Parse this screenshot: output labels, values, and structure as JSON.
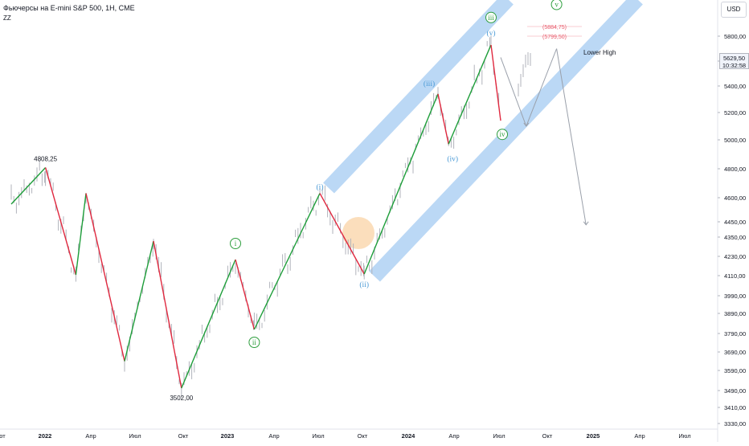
{
  "header": {
    "title": "Фьючерсы на E-mini S&P 500, 1H, CME",
    "indicator": "ZZ"
  },
  "currency_button": "USD",
  "price_tag": {
    "price": "5629,50",
    "countdown": "10:32:58"
  },
  "colors": {
    "up_leg": "#1e9e3a",
    "down_leg": "#e0283f",
    "channel": "#bbd8f5",
    "green_label": "#2e9e3e",
    "blue_label": "#4a9ad6",
    "target_red": "#e85a6a",
    "highlight": "#f7b56a",
    "candles": "#b0b3bb",
    "axis_text": "#131722"
  },
  "chart_data": {
    "type": "line",
    "title": "Фьючерсы на E-mini S&P 500, 1H, CME",
    "xlabel": "",
    "ylabel": "",
    "x_ticks": [
      "от",
      "2022",
      "Апр",
      "Июл",
      "Окт",
      "2023",
      "Апр",
      "Июл",
      "Окт",
      "2024",
      "Апр",
      "Июл",
      "Окт",
      "2025",
      "Апр",
      "Июл"
    ],
    "y_ticks": [
      "5800,00",
      "5600,00",
      "5400,00",
      "5200,00",
      "5000,00",
      "4800,00",
      "4600,00",
      "4450,00",
      "4350,00",
      "4230,00",
      "4110,00",
      "3990,00",
      "3890,00",
      "3790,00",
      "3690,00",
      "3590,00",
      "3490,00",
      "3410,00",
      "3330,00"
    ],
    "y_range": [
      3330,
      5800
    ],
    "series": [
      {
        "points": [
          {
            "x": "2021-10-25",
            "y": 4560
          },
          {
            "x": "2022-01-04",
            "y": 4808.25
          },
          {
            "x": "2022-03-08",
            "y": 4115
          },
          {
            "x": "2022-03-29",
            "y": 4630
          },
          {
            "x": "2022-06-17",
            "y": 3640
          },
          {
            "x": "2022-08-16",
            "y": 4325
          },
          {
            "x": "2022-10-13",
            "y": 3502
          },
          {
            "x": "2023-02-02",
            "y": 4210
          },
          {
            "x": "2023-03-13",
            "y": 3810
          },
          {
            "x": "2023-07-27",
            "y": 4630
          },
          {
            "x": "2023-10-27",
            "y": 4120
          },
          {
            "x": "2024-03-28",
            "y": 5340
          },
          {
            "x": "2024-04-19",
            "y": 4970
          },
          {
            "x": "2024-07-16",
            "y": 5730
          },
          {
            "x": "2024-08-05",
            "y": 5140
          }
        ]
      }
    ],
    "projection": [
      {
        "x": "2024-08-05",
        "y": 5629.5
      },
      {
        "x": "2024-09-27",
        "y": 5100
      },
      {
        "x": "2024-11-29",
        "y": 5700
      },
      {
        "x": "2025-01-29",
        "y": 4430
      }
    ],
    "labels": [
      {
        "text": "4808,25",
        "x": "2022-01-04",
        "y": 4808.25
      },
      {
        "text": "3502,00",
        "x": "2022-10-13",
        "y": 3502
      },
      {
        "text": "i",
        "x": "2023-02-02",
        "y": 4210,
        "style": "green"
      },
      {
        "text": "ii",
        "x": "2023-03-13",
        "y": 3810,
        "style": "green"
      },
      {
        "text": "iii",
        "x": "2024-07-16",
        "y": 5730,
        "style": "green"
      },
      {
        "text": "iv",
        "x": "2024-08-05",
        "y": 5140,
        "style": "green"
      },
      {
        "text": "v",
        "x": "2024-11-29",
        "y": 5700,
        "style": "green"
      },
      {
        "text": "(i)",
        "x": "2023-07-27",
        "y": 4630,
        "style": "blue"
      },
      {
        "text": "(ii)",
        "x": "2023-10-27",
        "y": 4120,
        "style": "blue"
      },
      {
        "text": "(iii)",
        "x": "2024-03-28",
        "y": 5340,
        "style": "blue"
      },
      {
        "text": "(iv)",
        "x": "2024-04-19",
        "y": 4970,
        "style": "blue"
      },
      {
        "text": "(v)",
        "x": "2024-07-16",
        "y": 5730,
        "style": "blue"
      }
    ],
    "targets": [
      {
        "text": "(5884,75)",
        "y": 5884.75
      },
      {
        "text": "(5799,50)",
        "y": 5799.5
      }
    ],
    "annotation": "Lower High",
    "grid": false,
    "legend": "none"
  }
}
